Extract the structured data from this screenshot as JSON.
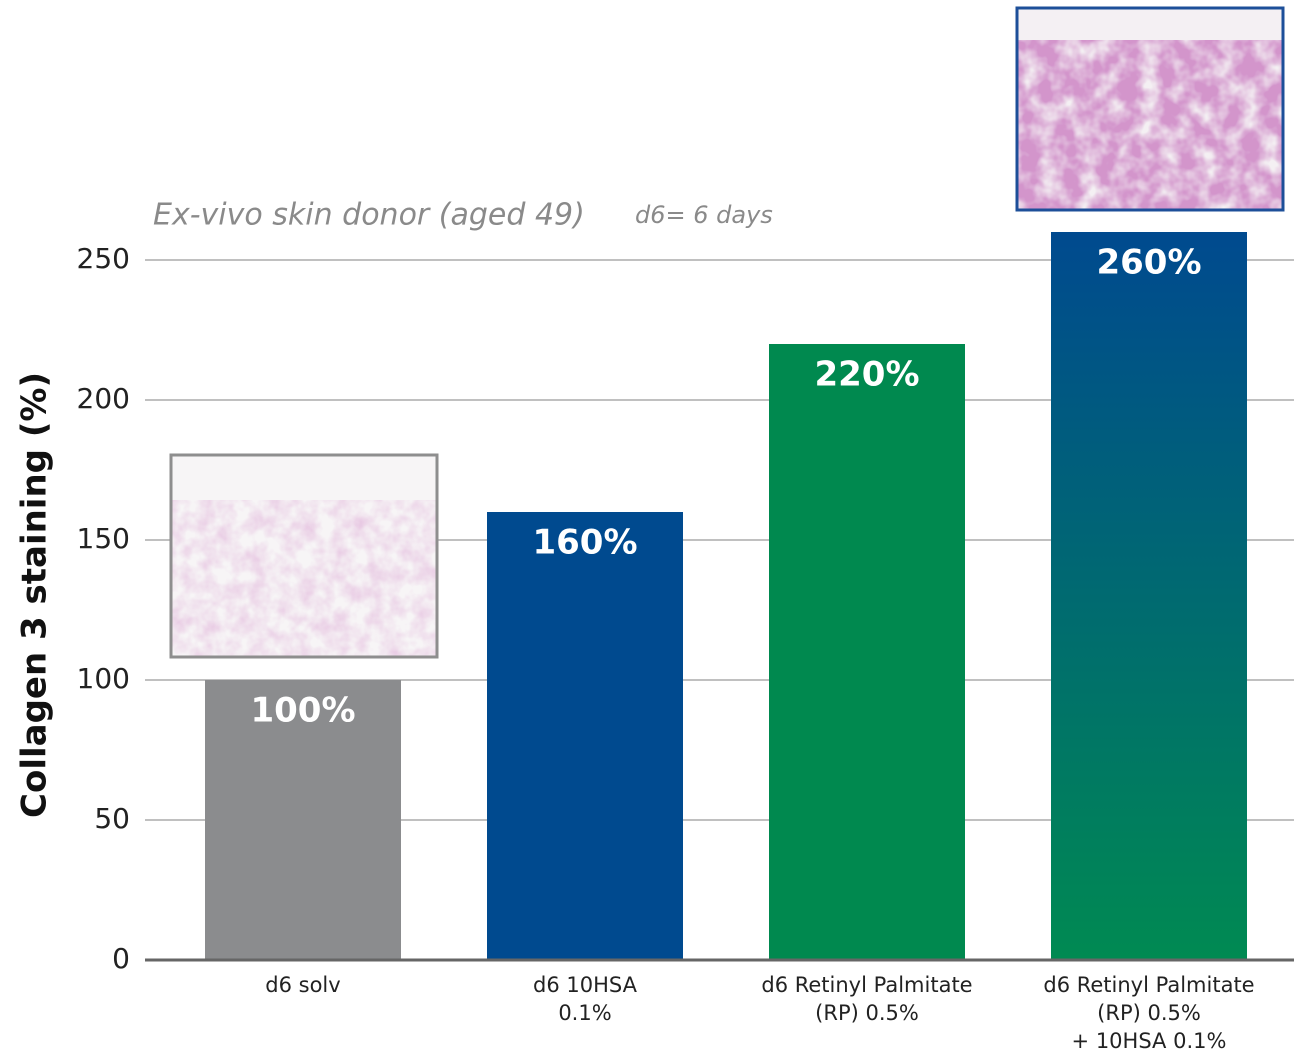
{
  "chart_data": {
    "type": "bar",
    "annotations": [
      "Ex-vivo skin donor (aged 49)",
      "d6= 6 days"
    ],
    "y_label": "Collagen 3 staining (%)",
    "categories": [
      [
        "d6 solv"
      ],
      [
        "d6 10HSA",
        "0.1%"
      ],
      [
        "d6 Retinyl Palmitate",
        "(RP) 0.5%"
      ],
      [
        "d6 Retinyl Palmitate",
        "(RP) 0.5%",
        "+ 10HSA 0.1%"
      ]
    ],
    "values": [
      100,
      160,
      220,
      260
    ],
    "value_labels": [
      "100%",
      "160%",
      "220%",
      "260%"
    ],
    "colors": [
      "#8b8c8e",
      "#004a8f",
      "#00894f",
      {
        "top": "#004a8f",
        "bottom": "#008a52"
      }
    ],
    "ylim": [
      0,
      250
    ],
    "yticks": [
      0,
      50,
      100,
      150,
      200,
      250
    ],
    "grid": true
  }
}
